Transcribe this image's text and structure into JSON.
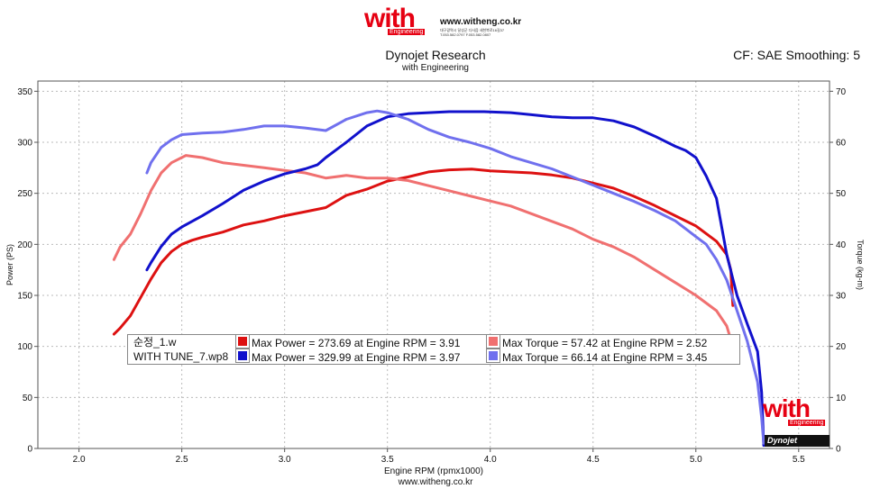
{
  "header": {
    "logo_text": "with",
    "logo_sub": "Engineering",
    "website": "www.witheng.co.kr",
    "address_line1": "대구광역시 달성군 다사읍 세천북로16길37",
    "address_line2": "T.053.582.0797 F.053.582.0807",
    "title": "Dynojet Research",
    "subtitle": "with Engineering",
    "correction": "CF: SAE Smoothing: 5"
  },
  "footer": {
    "website": "www.witheng.co.kr",
    "logo_text": "with",
    "logo_sub": "Engineering",
    "badge_text": "Dynojet"
  },
  "legend": {
    "rows": [
      {
        "file": "순정_1.w",
        "power_text": "Max Power = 273.69 at Engine RPM = 3.91",
        "torque_text": "Max Torque = 57.42 at Engine RPM = 2.52",
        "power_color": "#dd1111",
        "torque_color": "#f07070"
      },
      {
        "file": "WITH TUNE_7.wp8",
        "power_text": "Max Power = 329.99 at Engine RPM = 3.97",
        "torque_text": "Max Torque = 66.14 at Engine RPM = 3.45",
        "power_color": "#1111cc",
        "torque_color": "#7070ee"
      }
    ]
  },
  "chart_data": {
    "type": "line",
    "xlabel": "Engine RPM (rpmx1000)",
    "ylabel": "Power (PS)",
    "y2label": "Torque (kg-m)",
    "xlim": [
      1.8,
      5.65
    ],
    "ylim": [
      0,
      360
    ],
    "y2lim": [
      0,
      72
    ],
    "xticks": [
      "2.0",
      "2.5",
      "3.0",
      "3.5",
      "4.0",
      "4.5",
      "5.0",
      "5.5"
    ],
    "yticks": [
      "0",
      "50",
      "100",
      "150",
      "200",
      "250",
      "300",
      "350"
    ],
    "y2ticks": [
      "0",
      "10",
      "20",
      "30",
      "40",
      "50",
      "60",
      "70"
    ],
    "grid": true,
    "series": [
      {
        "name": "순정_1.w Power",
        "axis": "left",
        "color": "#dd1111",
        "points": [
          [
            2.17,
            112
          ],
          [
            2.2,
            118
          ],
          [
            2.25,
            130
          ],
          [
            2.3,
            148
          ],
          [
            2.35,
            166
          ],
          [
            2.4,
            182
          ],
          [
            2.45,
            193
          ],
          [
            2.5,
            200
          ],
          [
            2.55,
            204
          ],
          [
            2.6,
            207
          ],
          [
            2.7,
            212
          ],
          [
            2.8,
            219
          ],
          [
            2.9,
            223
          ],
          [
            3.0,
            228
          ],
          [
            3.1,
            232
          ],
          [
            3.2,
            236
          ],
          [
            3.3,
            248
          ],
          [
            3.4,
            254
          ],
          [
            3.5,
            262
          ],
          [
            3.6,
            266
          ],
          [
            3.7,
            271
          ],
          [
            3.8,
            273
          ],
          [
            3.91,
            273.69
          ],
          [
            4.0,
            272
          ],
          [
            4.1,
            271
          ],
          [
            4.2,
            270
          ],
          [
            4.3,
            268
          ],
          [
            4.4,
            265
          ],
          [
            4.5,
            260
          ],
          [
            4.6,
            255
          ],
          [
            4.7,
            247
          ],
          [
            4.8,
            238
          ],
          [
            4.9,
            228
          ],
          [
            5.0,
            218
          ],
          [
            5.1,
            203
          ],
          [
            5.15,
            190
          ],
          [
            5.17,
            175
          ],
          [
            5.18,
            140
          ]
        ]
      },
      {
        "name": "순정_1.w Torque",
        "axis": "right",
        "color": "#f07070",
        "points": [
          [
            2.17,
            37
          ],
          [
            2.2,
            39.5
          ],
          [
            2.25,
            42
          ],
          [
            2.3,
            46
          ],
          [
            2.35,
            50.5
          ],
          [
            2.4,
            54
          ],
          [
            2.45,
            56
          ],
          [
            2.52,
            57.42
          ],
          [
            2.6,
            57
          ],
          [
            2.7,
            56
          ],
          [
            2.8,
            55.5
          ],
          [
            2.9,
            55
          ],
          [
            3.0,
            54.5
          ],
          [
            3.1,
            54
          ],
          [
            3.2,
            53
          ],
          [
            3.3,
            53.5
          ],
          [
            3.4,
            53
          ],
          [
            3.5,
            53
          ],
          [
            3.6,
            52.5
          ],
          [
            3.7,
            51.5
          ],
          [
            3.8,
            50.5
          ],
          [
            3.9,
            49.5
          ],
          [
            4.0,
            48.5
          ],
          [
            4.1,
            47.5
          ],
          [
            4.2,
            46
          ],
          [
            4.3,
            44.5
          ],
          [
            4.4,
            43
          ],
          [
            4.5,
            41
          ],
          [
            4.6,
            39.5
          ],
          [
            4.7,
            37.5
          ],
          [
            4.8,
            35
          ],
          [
            4.9,
            32.5
          ],
          [
            5.0,
            30
          ],
          [
            5.1,
            27
          ],
          [
            5.15,
            24
          ],
          [
            5.18,
            20
          ]
        ]
      },
      {
        "name": "WITH TUNE_7.wp8 Power",
        "axis": "left",
        "color": "#1111cc",
        "points": [
          [
            2.33,
            175
          ],
          [
            2.35,
            182
          ],
          [
            2.4,
            198
          ],
          [
            2.45,
            210
          ],
          [
            2.5,
            217
          ],
          [
            2.6,
            228
          ],
          [
            2.7,
            240
          ],
          [
            2.8,
            253
          ],
          [
            2.9,
            262
          ],
          [
            3.0,
            269
          ],
          [
            3.1,
            274
          ],
          [
            3.16,
            278
          ],
          [
            3.2,
            285
          ],
          [
            3.3,
            300
          ],
          [
            3.4,
            316
          ],
          [
            3.5,
            325
          ],
          [
            3.6,
            328
          ],
          [
            3.7,
            329
          ],
          [
            3.8,
            330
          ],
          [
            3.97,
            329.99
          ],
          [
            4.1,
            329
          ],
          [
            4.2,
            327
          ],
          [
            4.3,
            325
          ],
          [
            4.4,
            324
          ],
          [
            4.5,
            324
          ],
          [
            4.6,
            321
          ],
          [
            4.7,
            315
          ],
          [
            4.8,
            306
          ],
          [
            4.9,
            296
          ],
          [
            4.95,
            292
          ],
          [
            5.0,
            285
          ],
          [
            5.05,
            267
          ],
          [
            5.1,
            245
          ],
          [
            5.15,
            190
          ],
          [
            5.2,
            150
          ],
          [
            5.25,
            122
          ],
          [
            5.3,
            95
          ],
          [
            5.32,
            55
          ],
          [
            5.33,
            3
          ]
        ]
      },
      {
        "name": "WITH TUNE_7.wp8 Torque",
        "axis": "right",
        "color": "#7070ee",
        "points": [
          [
            2.33,
            54
          ],
          [
            2.35,
            56
          ],
          [
            2.4,
            59
          ],
          [
            2.45,
            60.5
          ],
          [
            2.5,
            61.5
          ],
          [
            2.6,
            61.8
          ],
          [
            2.7,
            62
          ],
          [
            2.8,
            62.5
          ],
          [
            2.9,
            63.2
          ],
          [
            3.0,
            63.2
          ],
          [
            3.1,
            62.8
          ],
          [
            3.2,
            62.3
          ],
          [
            3.3,
            64.5
          ],
          [
            3.4,
            65.8
          ],
          [
            3.45,
            66.14
          ],
          [
            3.5,
            65.8
          ],
          [
            3.6,
            64.5
          ],
          [
            3.7,
            62.5
          ],
          [
            3.8,
            61
          ],
          [
            3.9,
            60
          ],
          [
            4.0,
            58.8
          ],
          [
            4.1,
            57.2
          ],
          [
            4.2,
            56
          ],
          [
            4.3,
            54.8
          ],
          [
            4.4,
            53.2
          ],
          [
            4.5,
            51.6
          ],
          [
            4.6,
            50
          ],
          [
            4.7,
            48.4
          ],
          [
            4.8,
            46.6
          ],
          [
            4.9,
            44.6
          ],
          [
            5.0,
            41.5
          ],
          [
            5.05,
            40
          ],
          [
            5.1,
            37
          ],
          [
            5.15,
            33
          ],
          [
            5.2,
            27
          ],
          [
            5.25,
            21
          ],
          [
            5.3,
            13
          ],
          [
            5.32,
            6
          ],
          [
            5.33,
            1
          ]
        ]
      }
    ]
  }
}
